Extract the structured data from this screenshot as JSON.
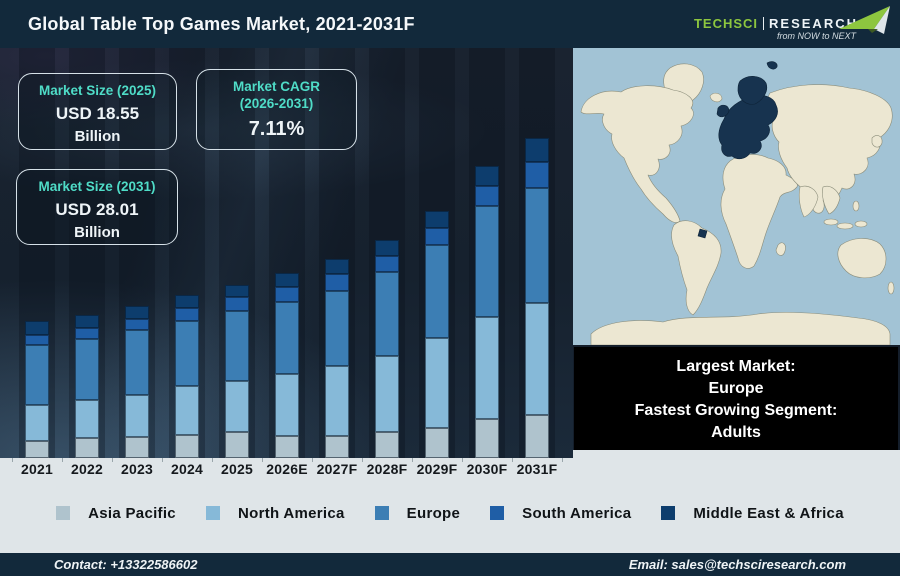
{
  "header": {
    "title": "Global Table Top Games Market, 2021-2031F",
    "logo": {
      "brand_primary": "TechSci",
      "brand_secondary": "Research",
      "tagline": "from NOW to NEXT"
    }
  },
  "callouts": [
    {
      "title_lines": [
        "Market Size (2025)"
      ],
      "value": "USD 18.55",
      "unit": "Billion"
    },
    {
      "title_lines": [
        "Market CAGR",
        "(2026-2031)"
      ],
      "value": "7.11%",
      "unit": ""
    },
    {
      "title_lines": [
        "Market Size (2031)"
      ],
      "value": "USD 28.01",
      "unit": "Billion"
    }
  ],
  "chart_data": {
    "type": "bar",
    "stacked": true,
    "title": "Global Table Top Games Market, 2021-2031F",
    "categories": [
      "2021",
      "2022",
      "2023",
      "2024",
      "2025",
      "2026E",
      "2027F",
      "2028F",
      "2029F",
      "2030F",
      "2031F"
    ],
    "series": [
      {
        "name": "Asia Pacific",
        "color": "#afc3cd",
        "values": [
          17,
          20,
          21,
          23,
          26,
          22,
          22,
          26,
          30,
          39,
          43
        ]
      },
      {
        "name": "North America",
        "color": "#86b9d8",
        "values": [
          36,
          38,
          42,
          49,
          51,
          62,
          70,
          76,
          90,
          102,
          112
        ]
      },
      {
        "name": "Europe",
        "color": "#3c7eb4",
        "values": [
          60,
          61,
          65,
          65,
          70,
          72,
          75,
          84,
          93,
          111,
          115
        ]
      },
      {
        "name": "South America",
        "color": "#1f5ea6",
        "values": [
          10,
          11,
          11,
          13,
          14,
          15,
          17,
          16,
          17,
          20,
          26
        ]
      },
      {
        "name": "Middle East & Africa",
        "color": "#0d3d6d",
        "values": [
          14,
          13,
          13,
          13,
          12,
          14,
          15,
          16,
          17,
          20,
          24
        ]
      }
    ],
    "value_units": "relative stacked-segment heights (no numeric axis shown on chart)",
    "known_points": {
      "market_size_2025": "USD 18.55 Billion",
      "market_size_2031": "USD 28.01 Billion",
      "cagr_2026_2031": "7.11%"
    },
    "xlabel": "",
    "ylabel": "",
    "grid": false,
    "legend_position": "bottom"
  },
  "map": {
    "highlighted_region": "Europe"
  },
  "info_box": {
    "lines": [
      "Largest Market:",
      "Europe",
      "Fastest Growing Segment:",
      "Adults"
    ]
  },
  "footer": {
    "contact": "Contact: +13322586602",
    "email": "Email: sales@techsciresearch.com"
  },
  "colors": {
    "header_bg": "#12293b",
    "chart_bg": "#16212e",
    "accent_teal": "#4fdcc7",
    "strip_bg": "#dfe5e8",
    "map_ocean": "#a2c3d5",
    "map_land": "#ece7d2",
    "map_highlight": "#17334f",
    "logo_green": "#8dc63f",
    "info_box_bg": "#000000"
  }
}
